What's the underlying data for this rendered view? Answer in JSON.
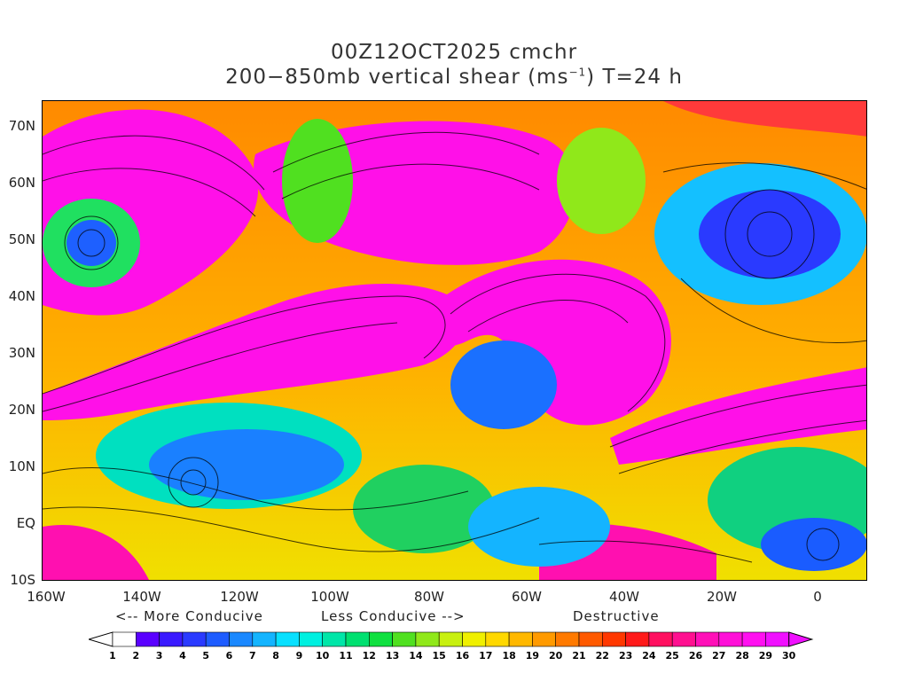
{
  "title": {
    "line1": "00Z12OCT2025 cmchr",
    "line2_pre": "200−850mb vertical shear (ms",
    "line2_sup": "−1",
    "line2_post": ") T=24 h"
  },
  "lat_labels": [
    "70N",
    "60N",
    "50N",
    "40N",
    "30N",
    "20N",
    "10N",
    "EQ",
    "10S"
  ],
  "lon_labels": [
    "160W",
    "140W",
    "120W",
    "100W",
    "80W",
    "60W",
    "40W",
    "20W",
    "0"
  ],
  "guide": {
    "more": "<-- More Conducive",
    "less": "Less Conducive -->",
    "destructive": "Destructive"
  },
  "colorbar": {
    "labels": [
      "1",
      "2",
      "3",
      "4",
      "5",
      "6",
      "7",
      "8",
      "9",
      "10",
      "11",
      "12",
      "13",
      "14",
      "15",
      "16",
      "17",
      "18",
      "19",
      "20",
      "21",
      "22",
      "23",
      "24",
      "25",
      "26",
      "27",
      "28",
      "29",
      "30"
    ],
    "colors": [
      "#ffffff",
      "#5a00ff",
      "#3a1aff",
      "#2a3aff",
      "#1e5cff",
      "#1a88ff",
      "#14b4ff",
      "#08e0ff",
      "#00f0e0",
      "#00e6a8",
      "#00e070",
      "#10e040",
      "#50e020",
      "#90e81a",
      "#c8f010",
      "#f0f000",
      "#ffd800",
      "#ffb800",
      "#ff9a00",
      "#ff7a00",
      "#ff5a00",
      "#ff3800",
      "#ff1a1a",
      "#ff1060",
      "#ff1090",
      "#ff10b8",
      "#ff10d8",
      "#ff10f0",
      "#f010ff"
    ]
  }
}
